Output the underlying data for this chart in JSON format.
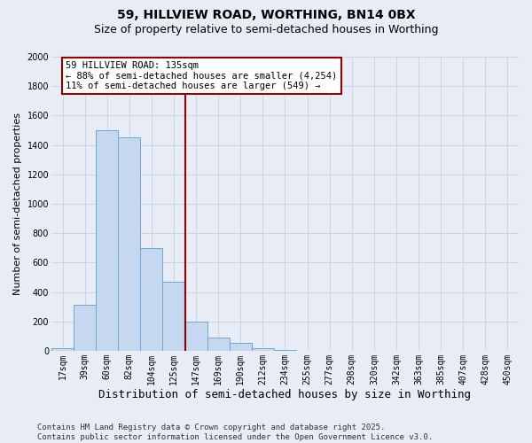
{
  "title1": "59, HILLVIEW ROAD, WORTHING, BN14 0BX",
  "title2": "Size of property relative to semi-detached houses in Worthing",
  "xlabel": "Distribution of semi-detached houses by size in Worthing",
  "ylabel": "Number of semi-detached properties",
  "categories": [
    "17sqm",
    "39sqm",
    "60sqm",
    "82sqm",
    "104sqm",
    "125sqm",
    "147sqm",
    "169sqm",
    "190sqm",
    "212sqm",
    "234sqm",
    "255sqm",
    "277sqm",
    "298sqm",
    "320sqm",
    "342sqm",
    "363sqm",
    "385sqm",
    "407sqm",
    "428sqm",
    "450sqm"
  ],
  "values": [
    15,
    310,
    1500,
    1450,
    700,
    470,
    200,
    90,
    55,
    15,
    5,
    0,
    0,
    0,
    0,
    0,
    0,
    0,
    0,
    0,
    0
  ],
  "bar_color": "#c5d8ef",
  "bar_edge_color": "#6aaad4",
  "vline_index": 5.5,
  "vline_color": "#8b0000",
  "annotation_text": "59 HILLVIEW ROAD: 135sqm\n← 88% of semi-detached houses are smaller (4,254)\n11% of semi-detached houses are larger (549) →",
  "annotation_box_color": "white",
  "annotation_box_edge_color": "#8b0000",
  "ylim_max": 2000,
  "yticks": [
    0,
    200,
    400,
    600,
    800,
    1000,
    1200,
    1400,
    1600,
    1800,
    2000
  ],
  "grid_color": "#c8d4e8",
  "bg_color": "#e8edf5",
  "footer": "Contains HM Land Registry data © Crown copyright and database right 2025.\nContains public sector information licensed under the Open Government Licence v3.0.",
  "title_fontsize": 10,
  "subtitle_fontsize": 9,
  "annotation_fontsize": 7.5,
  "tick_fontsize": 7,
  "ylabel_fontsize": 8,
  "xlabel_fontsize": 9,
  "footer_fontsize": 6.5
}
